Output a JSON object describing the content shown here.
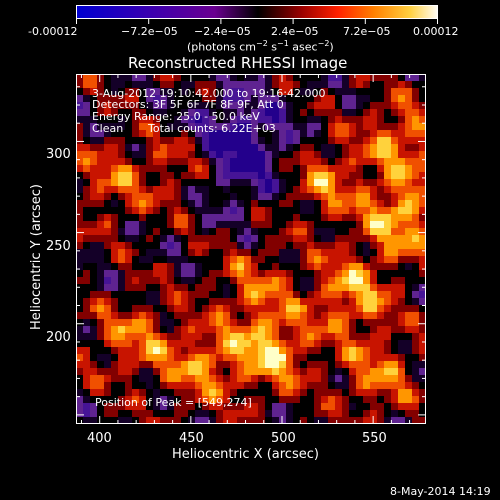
{
  "colorbar": {
    "tick_labels": [
      "-0.00012",
      "−7.2e−05",
      "−2.4e−05",
      "2.4e−05",
      "7.2e−05",
      "0.00012"
    ],
    "tick_values": [
      -0.00012,
      -7.2e-05,
      -2.4e-05,
      2.4e-05,
      7.2e-05,
      0.00012
    ],
    "units_prefix": "(photons cm",
    "units_sup1": "−2",
    "units_mid": " s",
    "units_sup2": "−1",
    "units_mid2": " asec",
    "units_sup3": "−2",
    "units_suffix": ")",
    "colors": [
      "#0000cc",
      "#4b00a0",
      "#7a0078",
      "#000000",
      "#a00000",
      "#ff4000",
      "#ffa000",
      "#ffff80",
      "#ffffff"
    ]
  },
  "chart_data": {
    "type": "heatmap",
    "title": "Reconstructed RHESSI Image",
    "xlabel": "Heliocentric X (arcsec)",
    "ylabel": "Heliocentric Y (arcsec)",
    "xlim": [
      387,
      579
    ],
    "ylim": [
      145,
      337
    ],
    "xticks": [
      400,
      450,
      500,
      550
    ],
    "yticks": [
      200,
      250,
      300
    ],
    "peak": [
      549,
      274
    ],
    "annotations": {
      "time_range": "3-Aug-2012 19:10:42.000 to 19:16:42.000",
      "detectors": "Detectors: 3F 5F 6F 7F 8F 9F, Att 0",
      "energy": "Energy Range: 25.0 - 50.0 keV",
      "clean": "Clean",
      "counts": "Total counts: 6.22E+03",
      "peak_text": "Position of Peak = [549,274]"
    }
  },
  "footer": {
    "timestamp": "8-May-2014 14:19"
  }
}
